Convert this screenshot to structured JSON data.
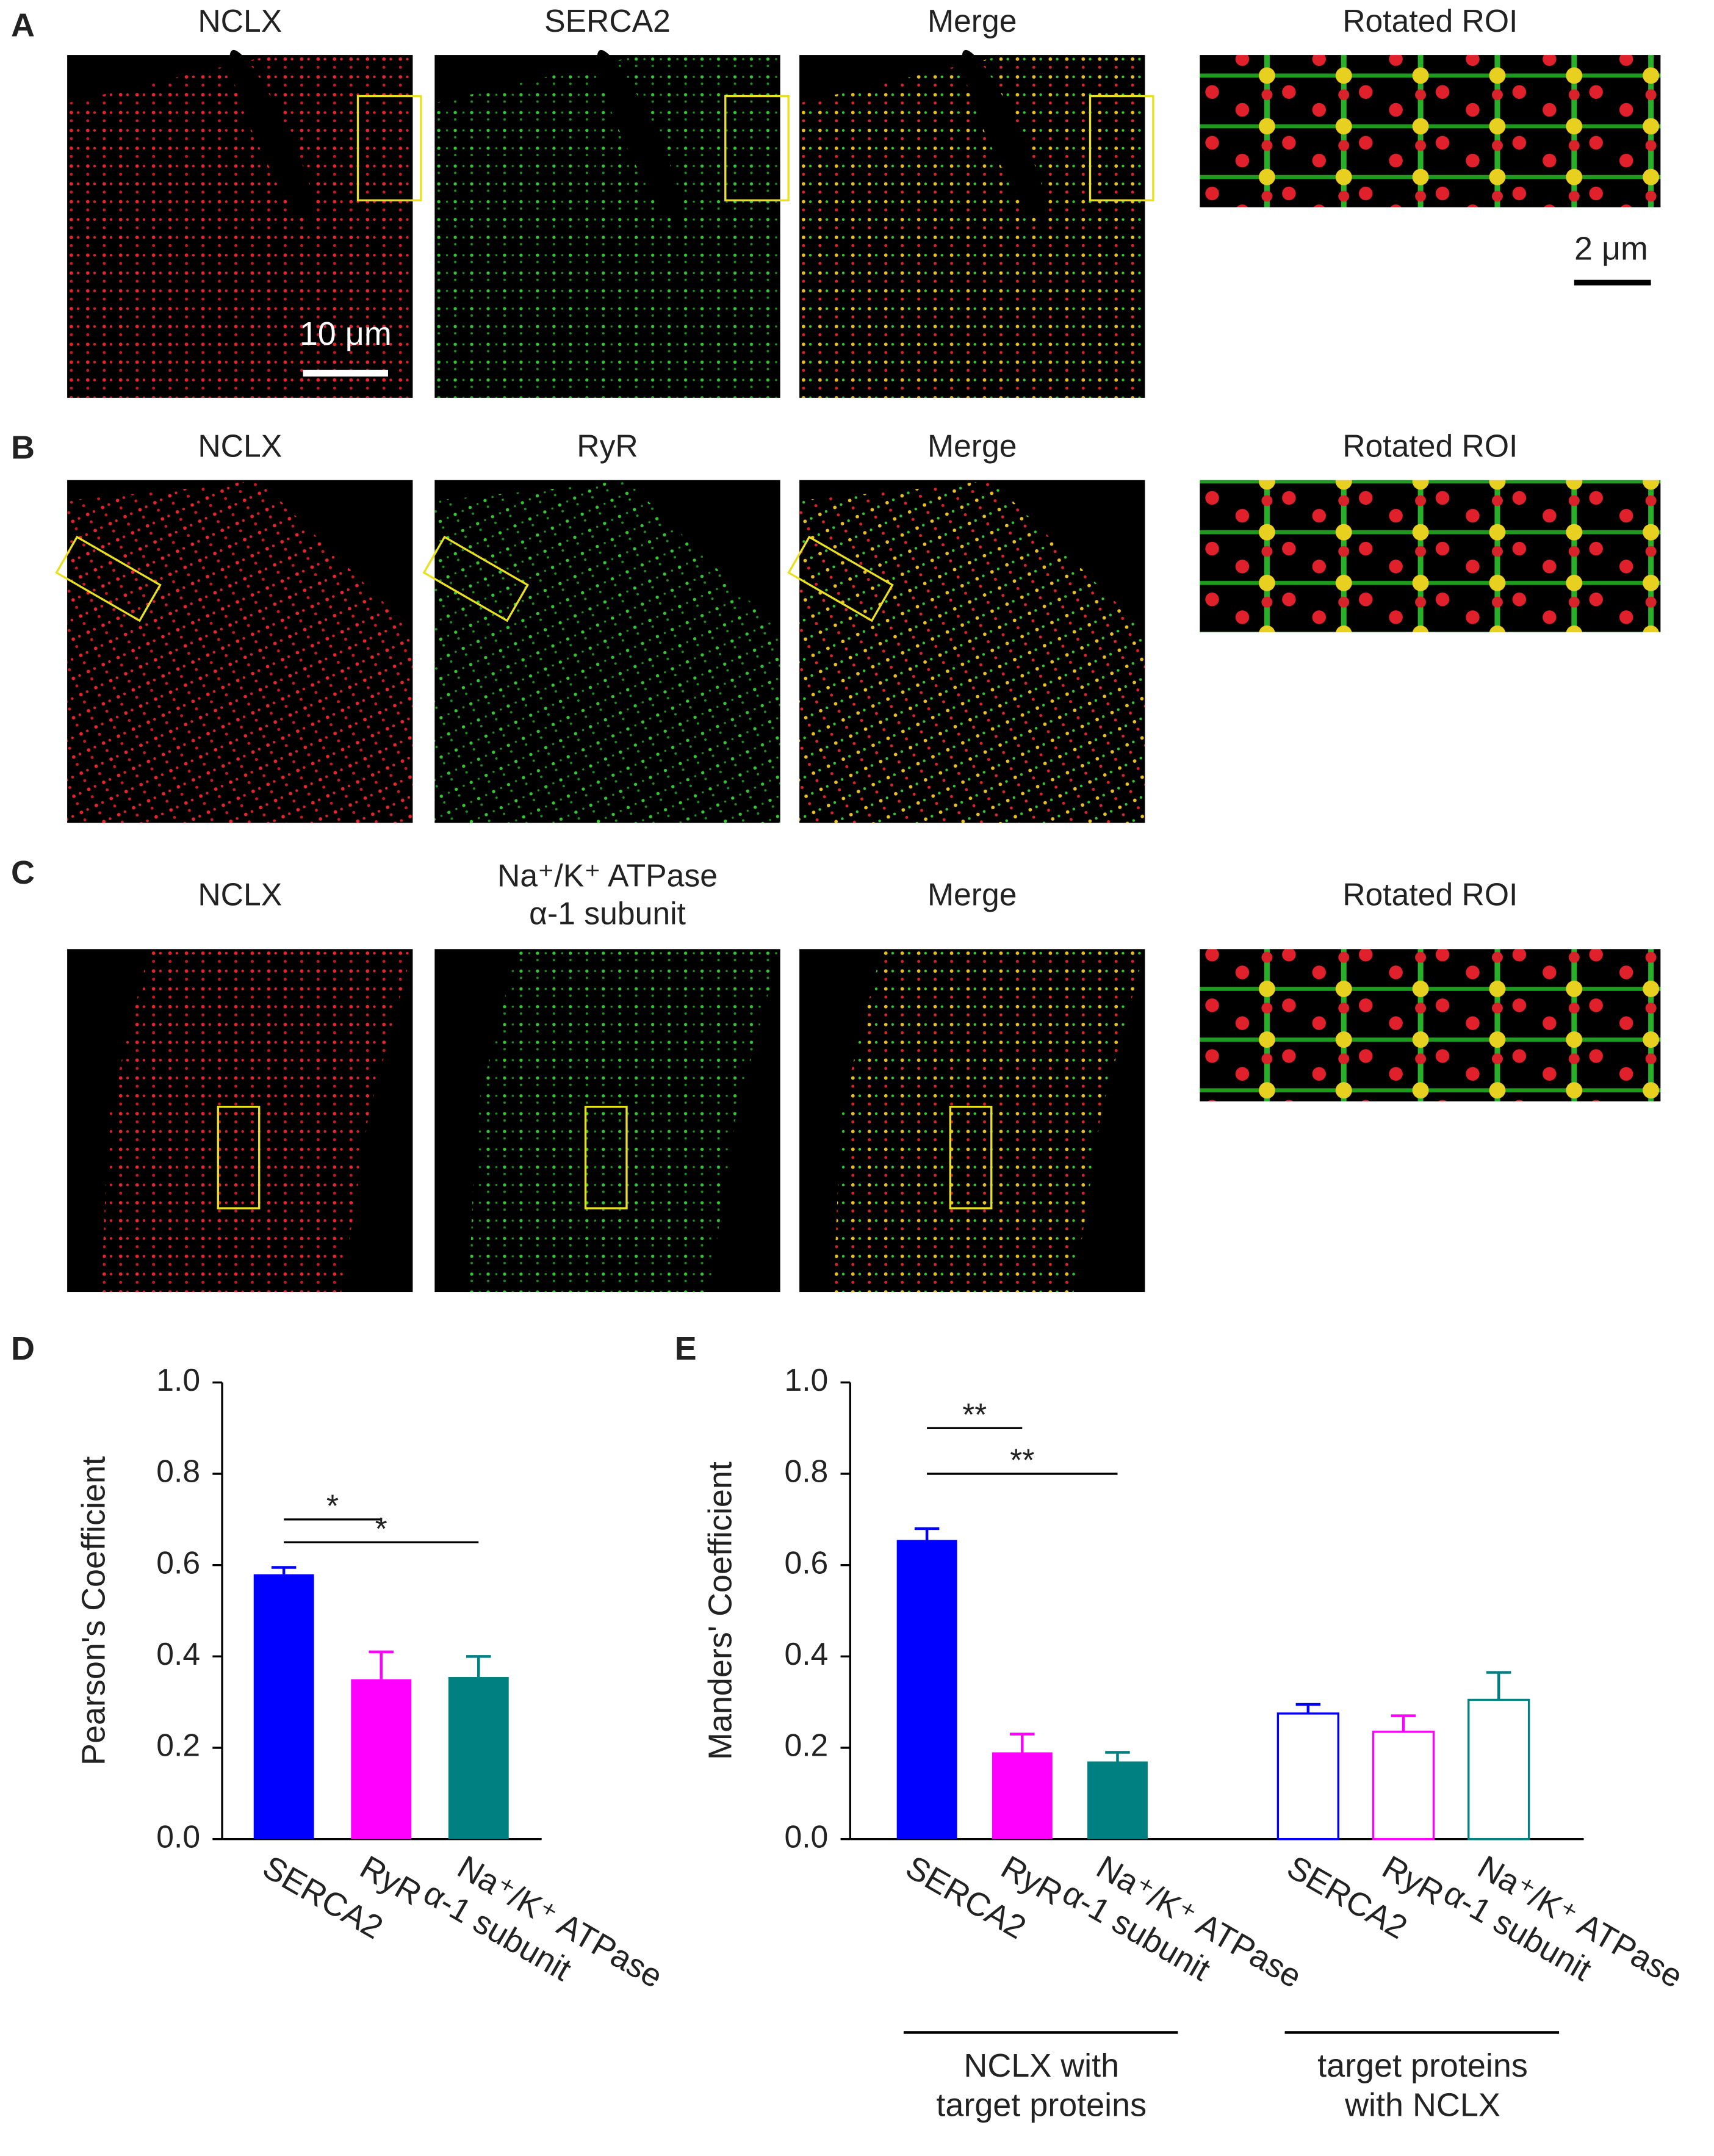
{
  "panels": [
    {
      "label": "A",
      "titles": [
        "NCLX",
        "SERCA2",
        "Merge",
        "Rotated ROI"
      ]
    },
    {
      "label": "B",
      "titles": [
        "NCLX",
        "RyR",
        "Merge",
        "Rotated ROI"
      ]
    },
    {
      "label": "C",
      "titles": [
        "NCLX",
        "Na⁺/K⁺ ATPase\nα-1 subunit",
        "Merge",
        "Rotated ROI"
      ]
    }
  ],
  "scale_bars": [
    "10 μm",
    "2 μm"
  ],
  "chart_data": [
    {
      "type": "bar",
      "label": "D",
      "ylabel": "Pearson's Coefficient",
      "ylim": [
        0,
        1
      ],
      "yticks": [
        {
          "value": 0,
          "label": "0.0"
        },
        0.2,
        0.4,
        0.6,
        0.8,
        {
          "value": 1,
          "label": "1.0"
        }
      ],
      "groups": [
        {
          "categories": [
            "SERCA2",
            "RyR",
            "Na⁺/K⁺ ATPase\nα-1 subunit"
          ],
          "values": [
            0.58,
            0.35,
            0.355
          ],
          "errors": [
            0.015,
            0.06,
            0.045
          ],
          "colors": [
            "#0000ff",
            "#ff00ff",
            "#008080"
          ],
          "filled": true
        }
      ],
      "annotations": [
        {
          "text": "*",
          "from": 0,
          "to": 1,
          "y": 0.7
        },
        {
          "text": "*",
          "from": 0,
          "to": 2,
          "y": 0.65
        }
      ]
    },
    {
      "type": "bar",
      "label": "E",
      "ylabel": "Manders' Coefficient",
      "ylim": [
        0,
        1
      ],
      "yticks": [
        {
          "value": 0,
          "label": "0.0"
        },
        0.2,
        0.4,
        0.6,
        0.8,
        {
          "value": 1,
          "label": "1.0"
        }
      ],
      "groups": [
        {
          "label": "NCLX with\ntarget proteins",
          "categories": [
            "SERCA2",
            "RyR",
            "Na⁺/K⁺ ATPase\nα-1 subunit"
          ],
          "values": [
            0.655,
            0.19,
            0.17
          ],
          "errors": [
            0.025,
            0.04,
            0.02
          ],
          "colors": [
            "#0000ff",
            "#ff00ff",
            "#008080"
          ],
          "filled": true
        },
        {
          "label": "target proteins\nwith NCLX",
          "categories": [
            "SERCA2",
            "RyR",
            "Na⁺/K⁺ ATPase\nα-1 subunit"
          ],
          "values": [
            0.275,
            0.235,
            0.305
          ],
          "errors": [
            0.02,
            0.035,
            0.06
          ],
          "colors": [
            "#0000ff",
            "#ff00ff",
            "#008080"
          ],
          "filled": false
        }
      ],
      "annotations": [
        {
          "text": "**",
          "from": 0,
          "to": 1,
          "y": 0.9
        },
        {
          "text": "**",
          "from": 0,
          "to": 2,
          "y": 0.8
        }
      ]
    }
  ]
}
